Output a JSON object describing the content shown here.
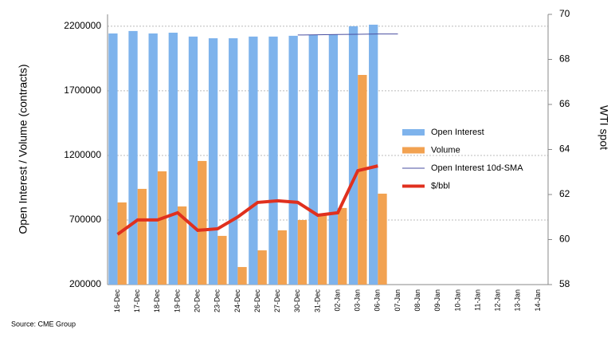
{
  "chart_data": {
    "type": "bar",
    "y_label": "Open Interest / Volume (contracts)",
    "y2_label": "WTI spot",
    "source": "Source: CME Group",
    "categories": [
      "16-Dec",
      "17-Dec",
      "18-Dec",
      "19-Dec",
      "20-Dec",
      "23-Dec",
      "24-Dec",
      "26-Dec",
      "27-Dec",
      "30-Dec",
      "31-Dec",
      "02-Jan",
      "03-Jan",
      "06-Jan",
      "07-Jan",
      "08-Jan",
      "09-Jan",
      "10-Jan",
      "11-Jan",
      "12-Jan",
      "13-Jan",
      "14-Jan"
    ],
    "series": [
      {
        "name": "Open Interest",
        "type": "bar",
        "color": "#7eb3ec",
        "values": [
          2144000,
          2163000,
          2144000,
          2150000,
          2120000,
          2107000,
          2107000,
          2120000,
          2120000,
          2126000,
          2132000,
          2138000,
          2200000,
          2212000,
          null,
          null,
          null,
          null,
          null,
          null,
          null,
          null
        ]
      },
      {
        "name": "Volume",
        "type": "bar",
        "color": "#f2a251",
        "values": [
          836000,
          941000,
          1077000,
          805000,
          1157000,
          577000,
          336000,
          465000,
          620000,
          700000,
          743000,
          793000,
          1823000,
          904000,
          null,
          null,
          null,
          null,
          null,
          null,
          null,
          null
        ]
      },
      {
        "name": "Open Interest 10d-SMA",
        "type": "line",
        "color": "#4a4fa0",
        "values": [
          null,
          null,
          null,
          null,
          null,
          null,
          null,
          null,
          null,
          2132000,
          2134000,
          2136000,
          2138000,
          2140000,
          2140000,
          null,
          null,
          null,
          null,
          null,
          null,
          null
        ]
      },
      {
        "name": "$/bbl",
        "type": "line",
        "axis": "y2",
        "color": "#e0301e",
        "values": [
          60.23,
          60.87,
          60.87,
          61.19,
          60.41,
          60.48,
          61.0,
          61.65,
          61.72,
          61.65,
          61.08,
          61.19,
          63.06,
          63.27,
          null,
          null,
          null,
          null,
          null,
          null,
          null,
          null
        ]
      }
    ],
    "ylim": [
      200000,
      2292000
    ],
    "yticks": [
      200000,
      700000,
      1200000,
      1700000,
      2200000
    ],
    "y2lim": [
      58,
      70
    ],
    "y2ticks": [
      58,
      60,
      62,
      64,
      66,
      68,
      70
    ],
    "grid": true,
    "legend": "right"
  }
}
